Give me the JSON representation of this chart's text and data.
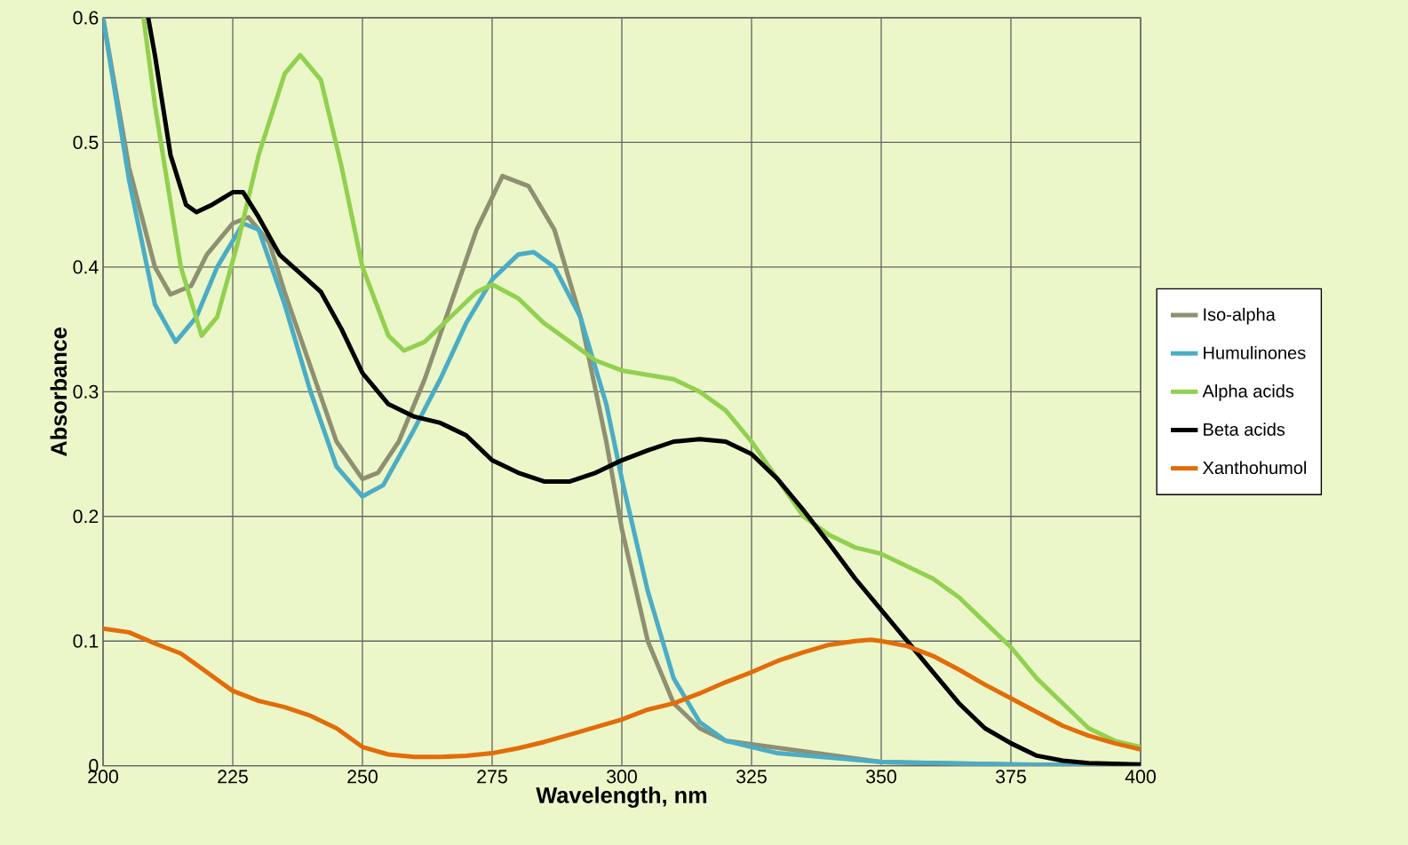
{
  "chart_data": {
    "type": "line",
    "xlabel": "Wavelength, nm",
    "ylabel": "Absorbance",
    "xlim": [
      200,
      400
    ],
    "ylim": [
      0,
      0.6
    ],
    "xticks": [
      200,
      225,
      250,
      275,
      300,
      325,
      350,
      375,
      400
    ],
    "yticks": [
      0,
      0.1,
      0.2,
      0.3,
      0.4,
      0.5,
      0.6
    ],
    "grid": true,
    "legend": "right",
    "series": [
      {
        "name": "Iso-alpha",
        "color": "#8f8f72",
        "x": [
          200,
          205,
          210,
          213,
          217,
          220,
          225,
          228,
          232,
          235,
          240,
          245,
          250,
          253,
          257,
          262,
          267,
          272,
          277,
          282,
          287,
          292,
          297,
          300,
          305,
          310,
          315,
          320,
          330,
          350,
          375,
          400
        ],
        "values": [
          0.6,
          0.48,
          0.4,
          0.378,
          0.385,
          0.41,
          0.435,
          0.44,
          0.42,
          0.38,
          0.32,
          0.26,
          0.23,
          0.235,
          0.26,
          0.31,
          0.37,
          0.43,
          0.473,
          0.465,
          0.43,
          0.36,
          0.26,
          0.19,
          0.1,
          0.05,
          0.03,
          0.02,
          null,
          0.003,
          0.001,
          0
        ]
      },
      {
        "name": "Humulinones",
        "color": "#4bacc6",
        "x": [
          200,
          205,
          210,
          214,
          218,
          222,
          227,
          230,
          235,
          240,
          245,
          250,
          254,
          260,
          265,
          270,
          275,
          280,
          283,
          287,
          292,
          297,
          300,
          305,
          310,
          315,
          320,
          330,
          350,
          375,
          400
        ],
        "values": [
          0.6,
          0.47,
          0.37,
          0.34,
          0.36,
          0.4,
          0.435,
          0.43,
          0.37,
          0.3,
          0.24,
          0.216,
          0.225,
          0.27,
          0.31,
          0.355,
          0.39,
          0.41,
          0.412,
          0.4,
          0.36,
          0.29,
          0.23,
          0.14,
          0.07,
          0.035,
          0.02,
          0.01,
          0.003,
          0.001,
          0
        ]
      },
      {
        "name": "Alpha acids",
        "color": "#92d050",
        "x": [
          207.8,
          210,
          215,
          219,
          222,
          226,
          230,
          235,
          238,
          242,
          246,
          250,
          255,
          258,
          262,
          267,
          272,
          275,
          280,
          285,
          290,
          295,
          300,
          310,
          315,
          320,
          325,
          330,
          335,
          340,
          345,
          350,
          355,
          360,
          365,
          370,
          375,
          380,
          385,
          390,
          395,
          400
        ],
        "values": [
          0.6,
          0.53,
          0.4,
          0.345,
          0.36,
          0.42,
          0.49,
          0.555,
          0.57,
          0.55,
          0.48,
          0.4,
          0.345,
          0.333,
          0.34,
          0.36,
          0.38,
          0.386,
          0.375,
          0.355,
          0.34,
          0.325,
          0.317,
          0.31,
          0.3,
          0.285,
          0.26,
          0.23,
          0.2,
          0.185,
          0.175,
          0.17,
          0.16,
          0.15,
          0.135,
          0.115,
          0.095,
          0.07,
          0.05,
          0.03,
          0.02,
          0.015
        ]
      },
      {
        "name": "Beta acids",
        "color": "#000000",
        "x": [
          208.7,
          210,
          213,
          216,
          218,
          221,
          225,
          227,
          230,
          234,
          238,
          242,
          246,
          250,
          255,
          260,
          265,
          270,
          275,
          280,
          285,
          290,
          295,
          300,
          305,
          310,
          315,
          320,
          325,
          330,
          335,
          340,
          345,
          350,
          355,
          360,
          365,
          370,
          375,
          380,
          385,
          390,
          400
        ],
        "values": [
          0.6,
          0.57,
          0.49,
          0.45,
          0.444,
          0.45,
          0.46,
          0.46,
          0.44,
          0.41,
          0.395,
          0.38,
          0.35,
          0.315,
          0.29,
          0.28,
          0.275,
          0.265,
          0.245,
          0.235,
          0.228,
          0.228,
          0.235,
          0.245,
          0.253,
          0.26,
          0.262,
          0.26,
          0.25,
          0.23,
          0.205,
          0.178,
          0.15,
          0.125,
          0.1,
          0.075,
          0.05,
          0.03,
          0.018,
          0.008,
          0.004,
          0.002,
          0.001
        ]
      },
      {
        "name": "Xanthohumol",
        "color": "#e36c0a",
        "x": [
          200,
          205,
          210,
          215,
          220,
          225,
          230,
          235,
          240,
          245,
          250,
          255,
          260,
          265,
          270,
          275,
          280,
          285,
          290,
          295,
          300,
          305,
          310,
          315,
          320,
          325,
          330,
          335,
          340,
          345,
          348,
          350,
          355,
          360,
          365,
          370,
          375,
          380,
          385,
          390,
          395,
          400
        ],
        "values": [
          0.11,
          0.107,
          0.098,
          0.09,
          0.075,
          0.06,
          0.052,
          0.047,
          0.04,
          0.03,
          0.015,
          0.009,
          0.007,
          0.007,
          0.008,
          0.01,
          0.014,
          0.019,
          0.025,
          0.031,
          0.037,
          0.045,
          0.05,
          0.058,
          0.067,
          0.075,
          0.084,
          0.091,
          0.097,
          0.1,
          0.101,
          0.1,
          0.096,
          0.088,
          0.077,
          0.065,
          0.054,
          0.043,
          0.032,
          0.024,
          0.018,
          0.013
        ]
      }
    ]
  }
}
